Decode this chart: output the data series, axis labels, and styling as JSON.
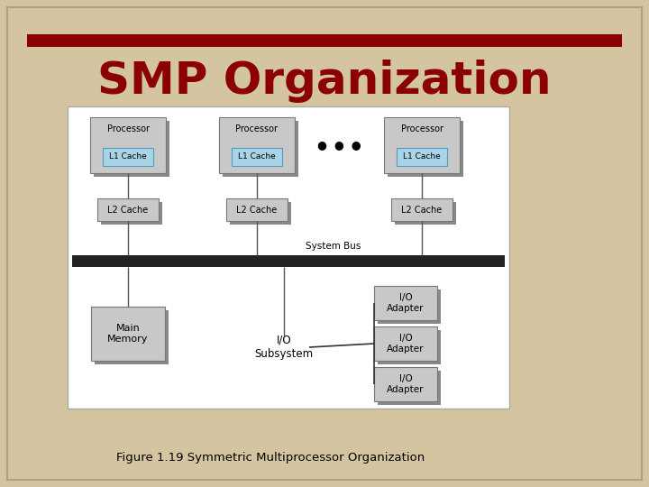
{
  "title": "SMP Organization",
  "caption": "Figure 1.19 Symmetric Multiprocessor Organization",
  "bg_color": "#d4c4a0",
  "title_color": "#8b0000",
  "accent_line_color": "#8b0000",
  "diagram_bg": "#ffffff",
  "box_face": "#c0c0c0",
  "box_shadow": "#909090",
  "l1_cache_color": "#a8d4e8",
  "system_bus_color": "#222222",
  "title_fontsize": 36,
  "caption_fontsize": 9.5,
  "processor_label": "Processor",
  "l1_label": "L1 Cache",
  "l2_label": "L2 Cache",
  "main_memory_label": "Main\nMemory",
  "io_subsystem_label": "I/O\nSubsystem",
  "io_adapter_label": "I/O\nAdapter",
  "system_bus_label": "System Bus",
  "dots": "●  ●  ●"
}
